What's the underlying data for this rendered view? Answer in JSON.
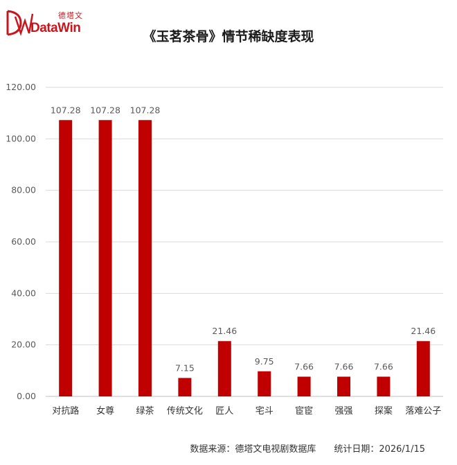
{
  "brand": {
    "cn": "德塔文",
    "en": "DataWin",
    "color": "#c8161d"
  },
  "title": "《玉茗茶骨》情节稀缺度表现",
  "source": {
    "data_source": "数据来源：德塔文电视剧数据库",
    "stat_date": "统计日期：2026/1/15"
  },
  "chart_data": {
    "type": "bar",
    "categories": [
      "对抗路",
      "女尊",
      "绿茶",
      "传统文化",
      "匠人",
      "宅斗",
      "宦宦",
      "强强",
      "探案",
      "落难公子"
    ],
    "values": [
      107.28,
      107.28,
      107.28,
      7.15,
      21.46,
      9.75,
      7.66,
      7.66,
      7.66,
      21.46
    ],
    "data_labels": [
      "107.28",
      "107.28",
      "107.28",
      "7.15",
      "21.46",
      "9.75",
      "7.66",
      "7.66",
      "7.66",
      "21.46"
    ],
    "y_ticks": [
      "0.00",
      "20.00",
      "40.00",
      "60.00",
      "80.00",
      "100.00",
      "120.00"
    ],
    "ylim": [
      0,
      120
    ],
    "grid": true,
    "bar_color": "#c00000"
  }
}
